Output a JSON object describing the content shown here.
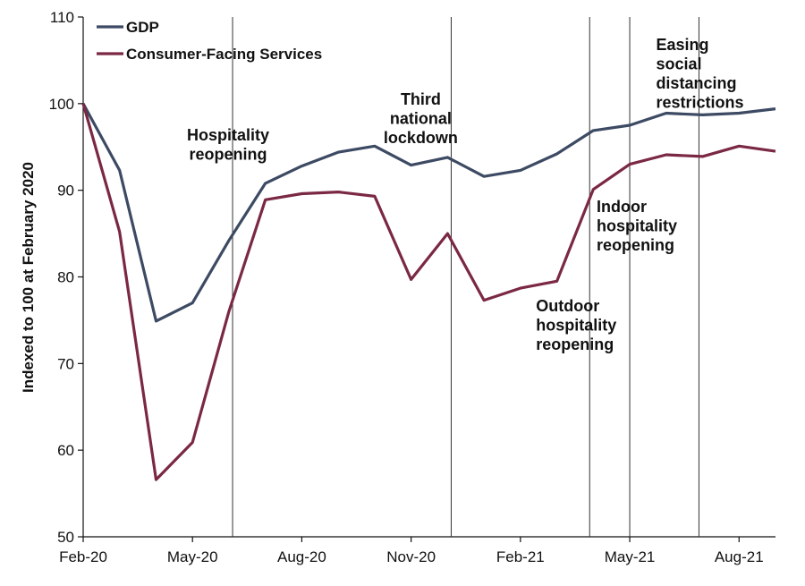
{
  "chart_data": {
    "type": "line",
    "title": "",
    "xlabel": "",
    "ylabel": "Indexed to 100 at February 2020",
    "ylim": [
      50,
      110
    ],
    "yticks": [
      50,
      60,
      70,
      80,
      90,
      100,
      110
    ],
    "x": [
      "Feb-20",
      "Mar-20",
      "Apr-20",
      "May-20",
      "Jun-20",
      "Jul-20",
      "Aug-20",
      "Sep-20",
      "Oct-20",
      "Nov-20",
      "Dec-20",
      "Jan-21",
      "Feb-21",
      "Mar-21",
      "Apr-21",
      "May-21",
      "Jun-21",
      "Jul-21",
      "Aug-21",
      "Sep-21"
    ],
    "xtick_labels": [
      {
        "label": "Feb-20",
        "index": 0
      },
      {
        "label": "May-20",
        "index": 3
      },
      {
        "label": "Aug-20",
        "index": 6
      },
      {
        "label": "Nov-20",
        "index": 9
      },
      {
        "label": "Feb-21",
        "index": 12
      },
      {
        "label": "May-21",
        "index": 15
      },
      {
        "label": "Aug-21",
        "index": 18
      }
    ],
    "series": [
      {
        "name": "GDP",
        "color": "#3d4a63",
        "values": [
          100,
          92.3,
          74.9,
          77.0,
          84.2,
          90.8,
          92.8,
          94.4,
          95.1,
          92.9,
          93.8,
          91.6,
          92.3,
          94.2,
          96.9,
          97.5,
          98.9,
          98.7,
          98.9,
          99.4
        ]
      },
      {
        "name": "Consumer-Facing Services",
        "color": "#7a2843",
        "values": [
          100,
          85.2,
          56.6,
          60.9,
          76.0,
          88.9,
          89.6,
          89.8,
          89.3,
          79.7,
          85.0,
          77.3,
          78.7,
          79.5,
          90.1,
          93.0,
          94.1,
          93.9,
          95.1,
          94.5
        ]
      }
    ],
    "annotations": [
      {
        "lines": [
          "Hospitality",
          "reopening"
        ],
        "x": 4.1
      },
      {
        "lines": [
          "Third",
          "national",
          "lockdown"
        ],
        "x": 10.1
      },
      {
        "lines": [
          "Outdoor",
          "hospitality",
          "reopening"
        ],
        "x": 13.9
      },
      {
        "lines": [
          "Indoor",
          "hospitality",
          "reopening"
        ],
        "x": 15.0
      },
      {
        "lines": [
          "Easing",
          "social",
          "distancing",
          "restrictions"
        ],
        "x": 16.9
      }
    ],
    "legend": "top-left",
    "grid": false
  }
}
